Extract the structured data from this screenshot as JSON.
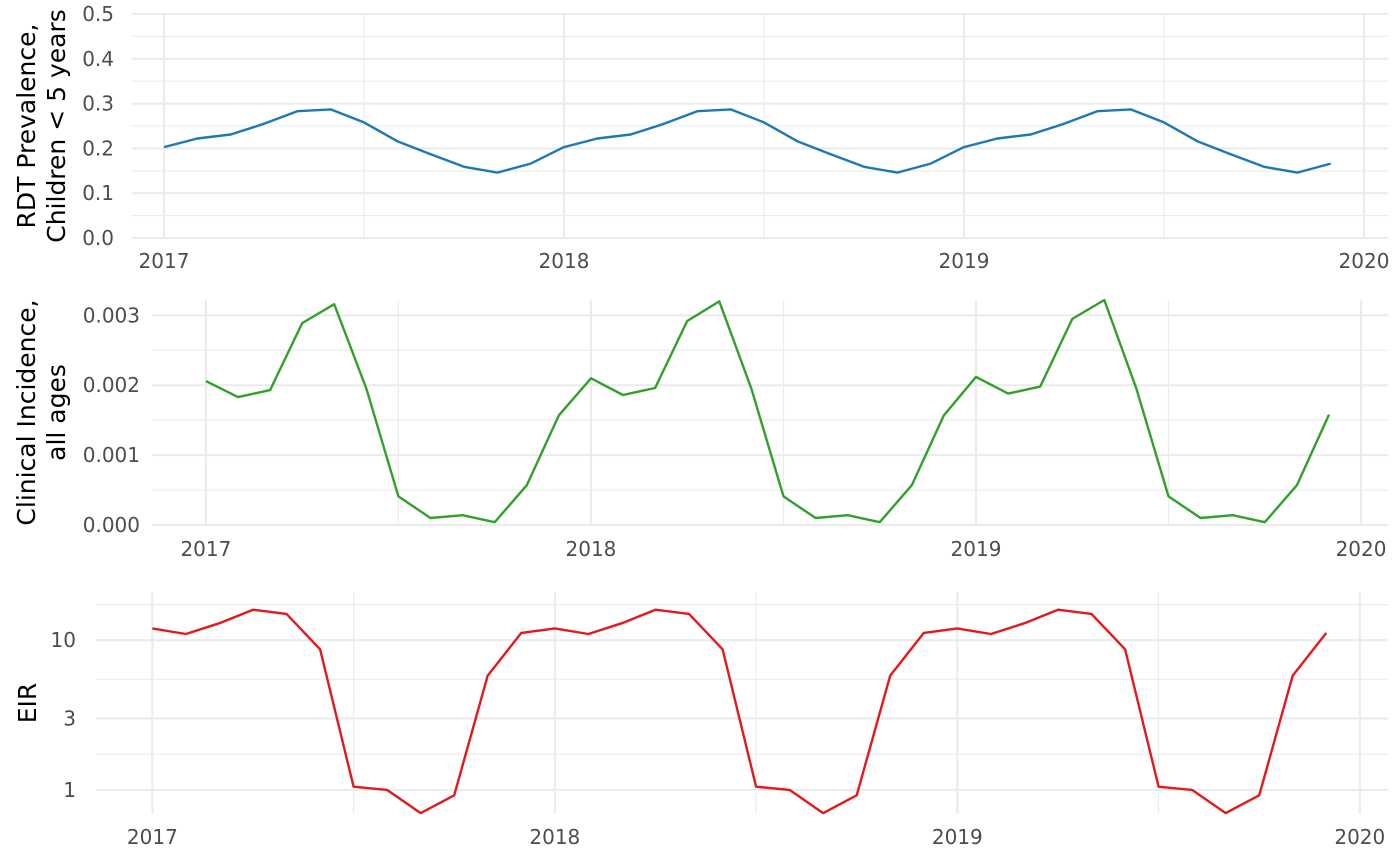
{
  "chart_data": [
    {
      "type": "line",
      "ylabel": [
        "RDT Prevalence,",
        "Children < 5 years"
      ],
      "xlim": [
        2016.92,
        2020.06
      ],
      "ylim": [
        0,
        0.5
      ],
      "y_scale": "linear",
      "y_ticks": [
        0,
        0.1,
        0.2,
        0.3,
        0.4,
        0.5
      ],
      "y_tick_labels": [
        "0.0",
        "0.1",
        "0.2",
        "0.3",
        "0.4",
        "0.5"
      ],
      "x_ticks": [
        2017,
        2018,
        2019,
        2020
      ],
      "x_tick_labels": [
        "2017",
        "2018",
        "2019",
        "2020"
      ],
      "grid": true,
      "series": [
        {
          "color": "#1f78b4",
          "x": [
            2017.0,
            2017.0833,
            2017.1667,
            2017.25,
            2017.3333,
            2017.4167,
            2017.5,
            2017.5833,
            2017.6667,
            2017.75,
            2017.8333,
            2017.9167,
            2018.0,
            2018.0833,
            2018.1667,
            2018.25,
            2018.3333,
            2018.4167,
            2018.5,
            2018.5833,
            2018.6667,
            2018.75,
            2018.8333,
            2018.9167,
            2019.0,
            2019.0833,
            2019.1667,
            2019.25,
            2019.3333,
            2019.4167,
            2019.5,
            2019.5833,
            2019.6667,
            2019.75,
            2019.8333,
            2019.9167
          ],
          "values": [
            0.203,
            0.222,
            0.231,
            0.255,
            0.283,
            0.287,
            0.258,
            0.216,
            0.187,
            0.159,
            0.146,
            0.166,
            0.203,
            0.222,
            0.231,
            0.255,
            0.283,
            0.287,
            0.258,
            0.216,
            0.187,
            0.159,
            0.146,
            0.166,
            0.203,
            0.222,
            0.231,
            0.255,
            0.283,
            0.287,
            0.258,
            0.216,
            0.187,
            0.159,
            0.146,
            0.166
          ]
        }
      ]
    },
    {
      "type": "line",
      "ylabel": [
        "Clinical Incidence,",
        "all ages"
      ],
      "xlim": [
        2016.86,
        2020.07
      ],
      "ylim": [
        0,
        0.00322
      ],
      "y_scale": "linear",
      "y_ticks": [
        0,
        0.001,
        0.002,
        0.003
      ],
      "y_tick_labels": [
        "0.000",
        "0.001",
        "0.002",
        "0.003"
      ],
      "x_ticks": [
        2017,
        2018,
        2019,
        2020
      ],
      "x_tick_labels": [
        "2017",
        "2018",
        "2019",
        "2020"
      ],
      "grid": true,
      "series": [
        {
          "color": "#33a02c",
          "x": [
            2017.0,
            2017.0833,
            2017.1667,
            2017.25,
            2017.3333,
            2017.4167,
            2017.5,
            2017.5833,
            2017.6667,
            2017.75,
            2017.8333,
            2017.9167,
            2018.0,
            2018.0833,
            2018.1667,
            2018.25,
            2018.3333,
            2018.4167,
            2018.5,
            2018.5833,
            2018.6667,
            2018.75,
            2018.8333,
            2018.9167,
            2019.0,
            2019.0833,
            2019.1667,
            2019.25,
            2019.3333,
            2019.4167,
            2019.5,
            2019.5833,
            2019.6667,
            2019.75,
            2019.8333,
            2019.9167
          ],
          "values": [
            0.00206,
            0.00183,
            0.00193,
            0.00289,
            0.00316,
            0.00195,
            0.00041,
            0.0001,
            0.00014,
            4e-05,
            0.00057,
            0.00157,
            0.0021,
            0.00186,
            0.00196,
            0.00292,
            0.0032,
            0.00195,
            0.00041,
            0.0001,
            0.00014,
            4e-05,
            0.00057,
            0.00157,
            0.00212,
            0.00188,
            0.00198,
            0.00295,
            0.00322,
            0.00195,
            0.00041,
            0.0001,
            0.00014,
            4e-05,
            0.00057,
            0.00158
          ]
        }
      ]
    },
    {
      "type": "line",
      "ylabel": [
        "EIR"
      ],
      "xlim": [
        2016.86,
        2020.07
      ],
      "ylim": [
        0.69,
        21
      ],
      "y_scale": "log",
      "y_ticks": [
        1,
        3,
        10
      ],
      "y_tick_labels": [
        "1",
        "3",
        "10"
      ],
      "x_ticks": [
        2017,
        2018,
        2019,
        2020
      ],
      "x_tick_labels": [
        "2017",
        "2018",
        "2019",
        "2020"
      ],
      "grid": true,
      "series": [
        {
          "color": "#e31a1c",
          "x": [
            2017.0,
            2017.0833,
            2017.1667,
            2017.25,
            2017.3333,
            2017.4167,
            2017.5,
            2017.5833,
            2017.6667,
            2017.75,
            2017.8333,
            2017.9167,
            2018.0,
            2018.0833,
            2018.1667,
            2018.25,
            2018.3333,
            2018.4167,
            2018.5,
            2018.5833,
            2018.6667,
            2018.75,
            2018.8333,
            2018.9167,
            2019.0,
            2019.0833,
            2019.1667,
            2019.25,
            2019.3333,
            2019.4167,
            2019.5,
            2019.5833,
            2019.6667,
            2019.75,
            2019.8333,
            2019.9167
          ],
          "values": [
            12.0,
            11.0,
            13.0,
            16.0,
            15.0,
            8.7,
            1.05,
            1.0,
            0.7,
            0.92,
            5.8,
            11.2,
            12.0,
            11.0,
            13.0,
            16.0,
            15.0,
            8.7,
            1.05,
            1.0,
            0.7,
            0.92,
            5.8,
            11.2,
            12.0,
            11.0,
            13.0,
            16.0,
            15.0,
            8.7,
            1.05,
            1.0,
            0.7,
            0.92,
            5.8,
            11.2
          ]
        }
      ]
    }
  ]
}
